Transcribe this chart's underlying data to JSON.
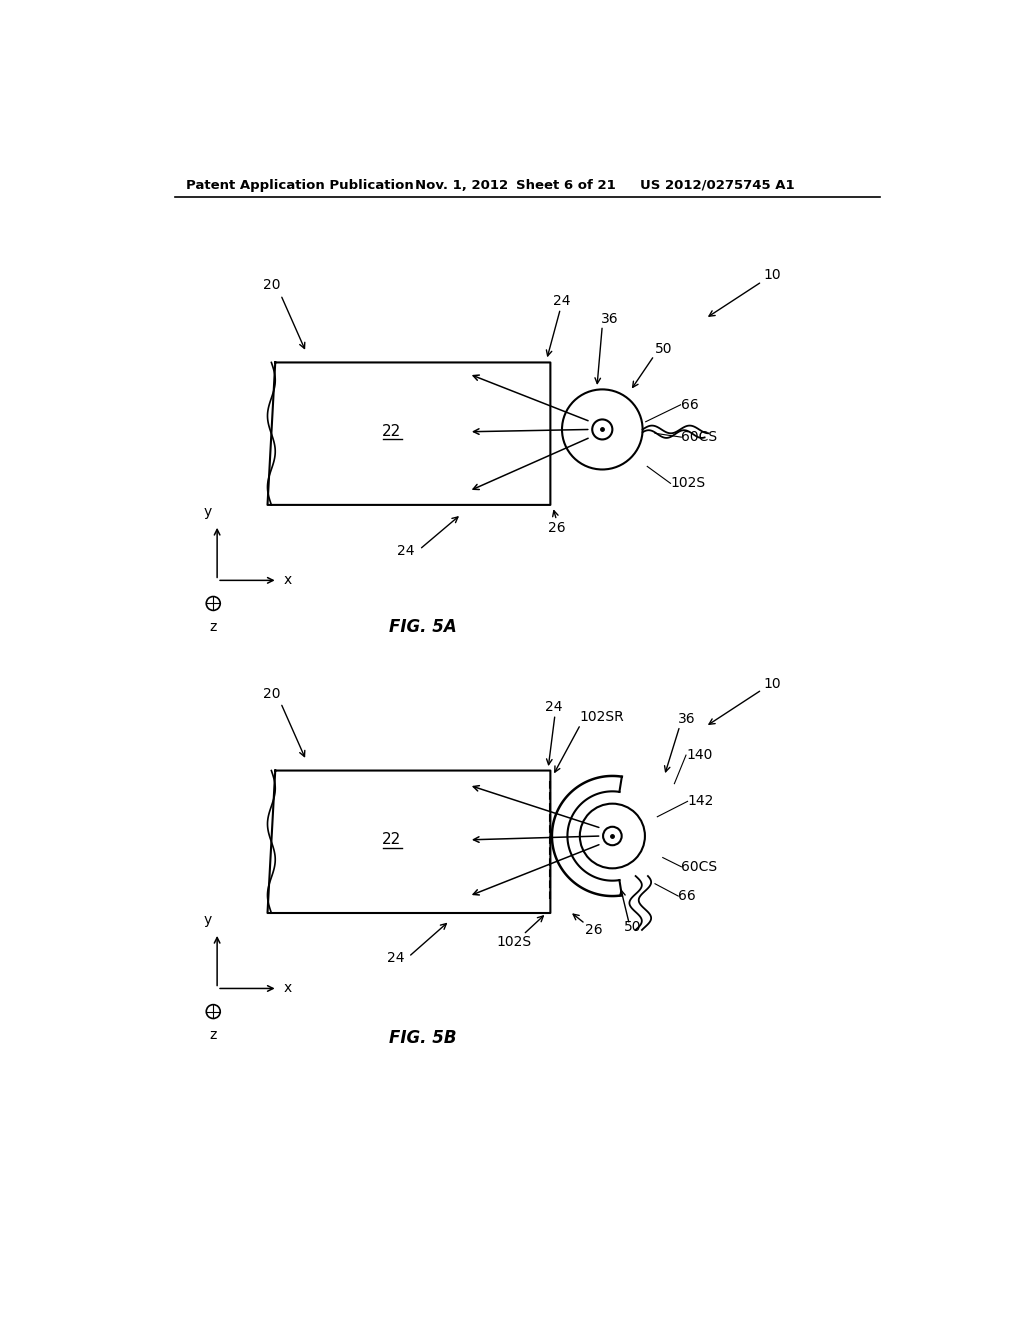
{
  "bg_color": "#ffffff",
  "line_color": "#000000",
  "header_text": "Patent Application Publication",
  "header_date": "Nov. 1, 2012",
  "header_sheet": "Sheet 6 of 21",
  "header_patent": "US 2012/0275745 A1",
  "fig5a_label": "FIG. 5A",
  "fig5b_label": "FIG. 5B"
}
